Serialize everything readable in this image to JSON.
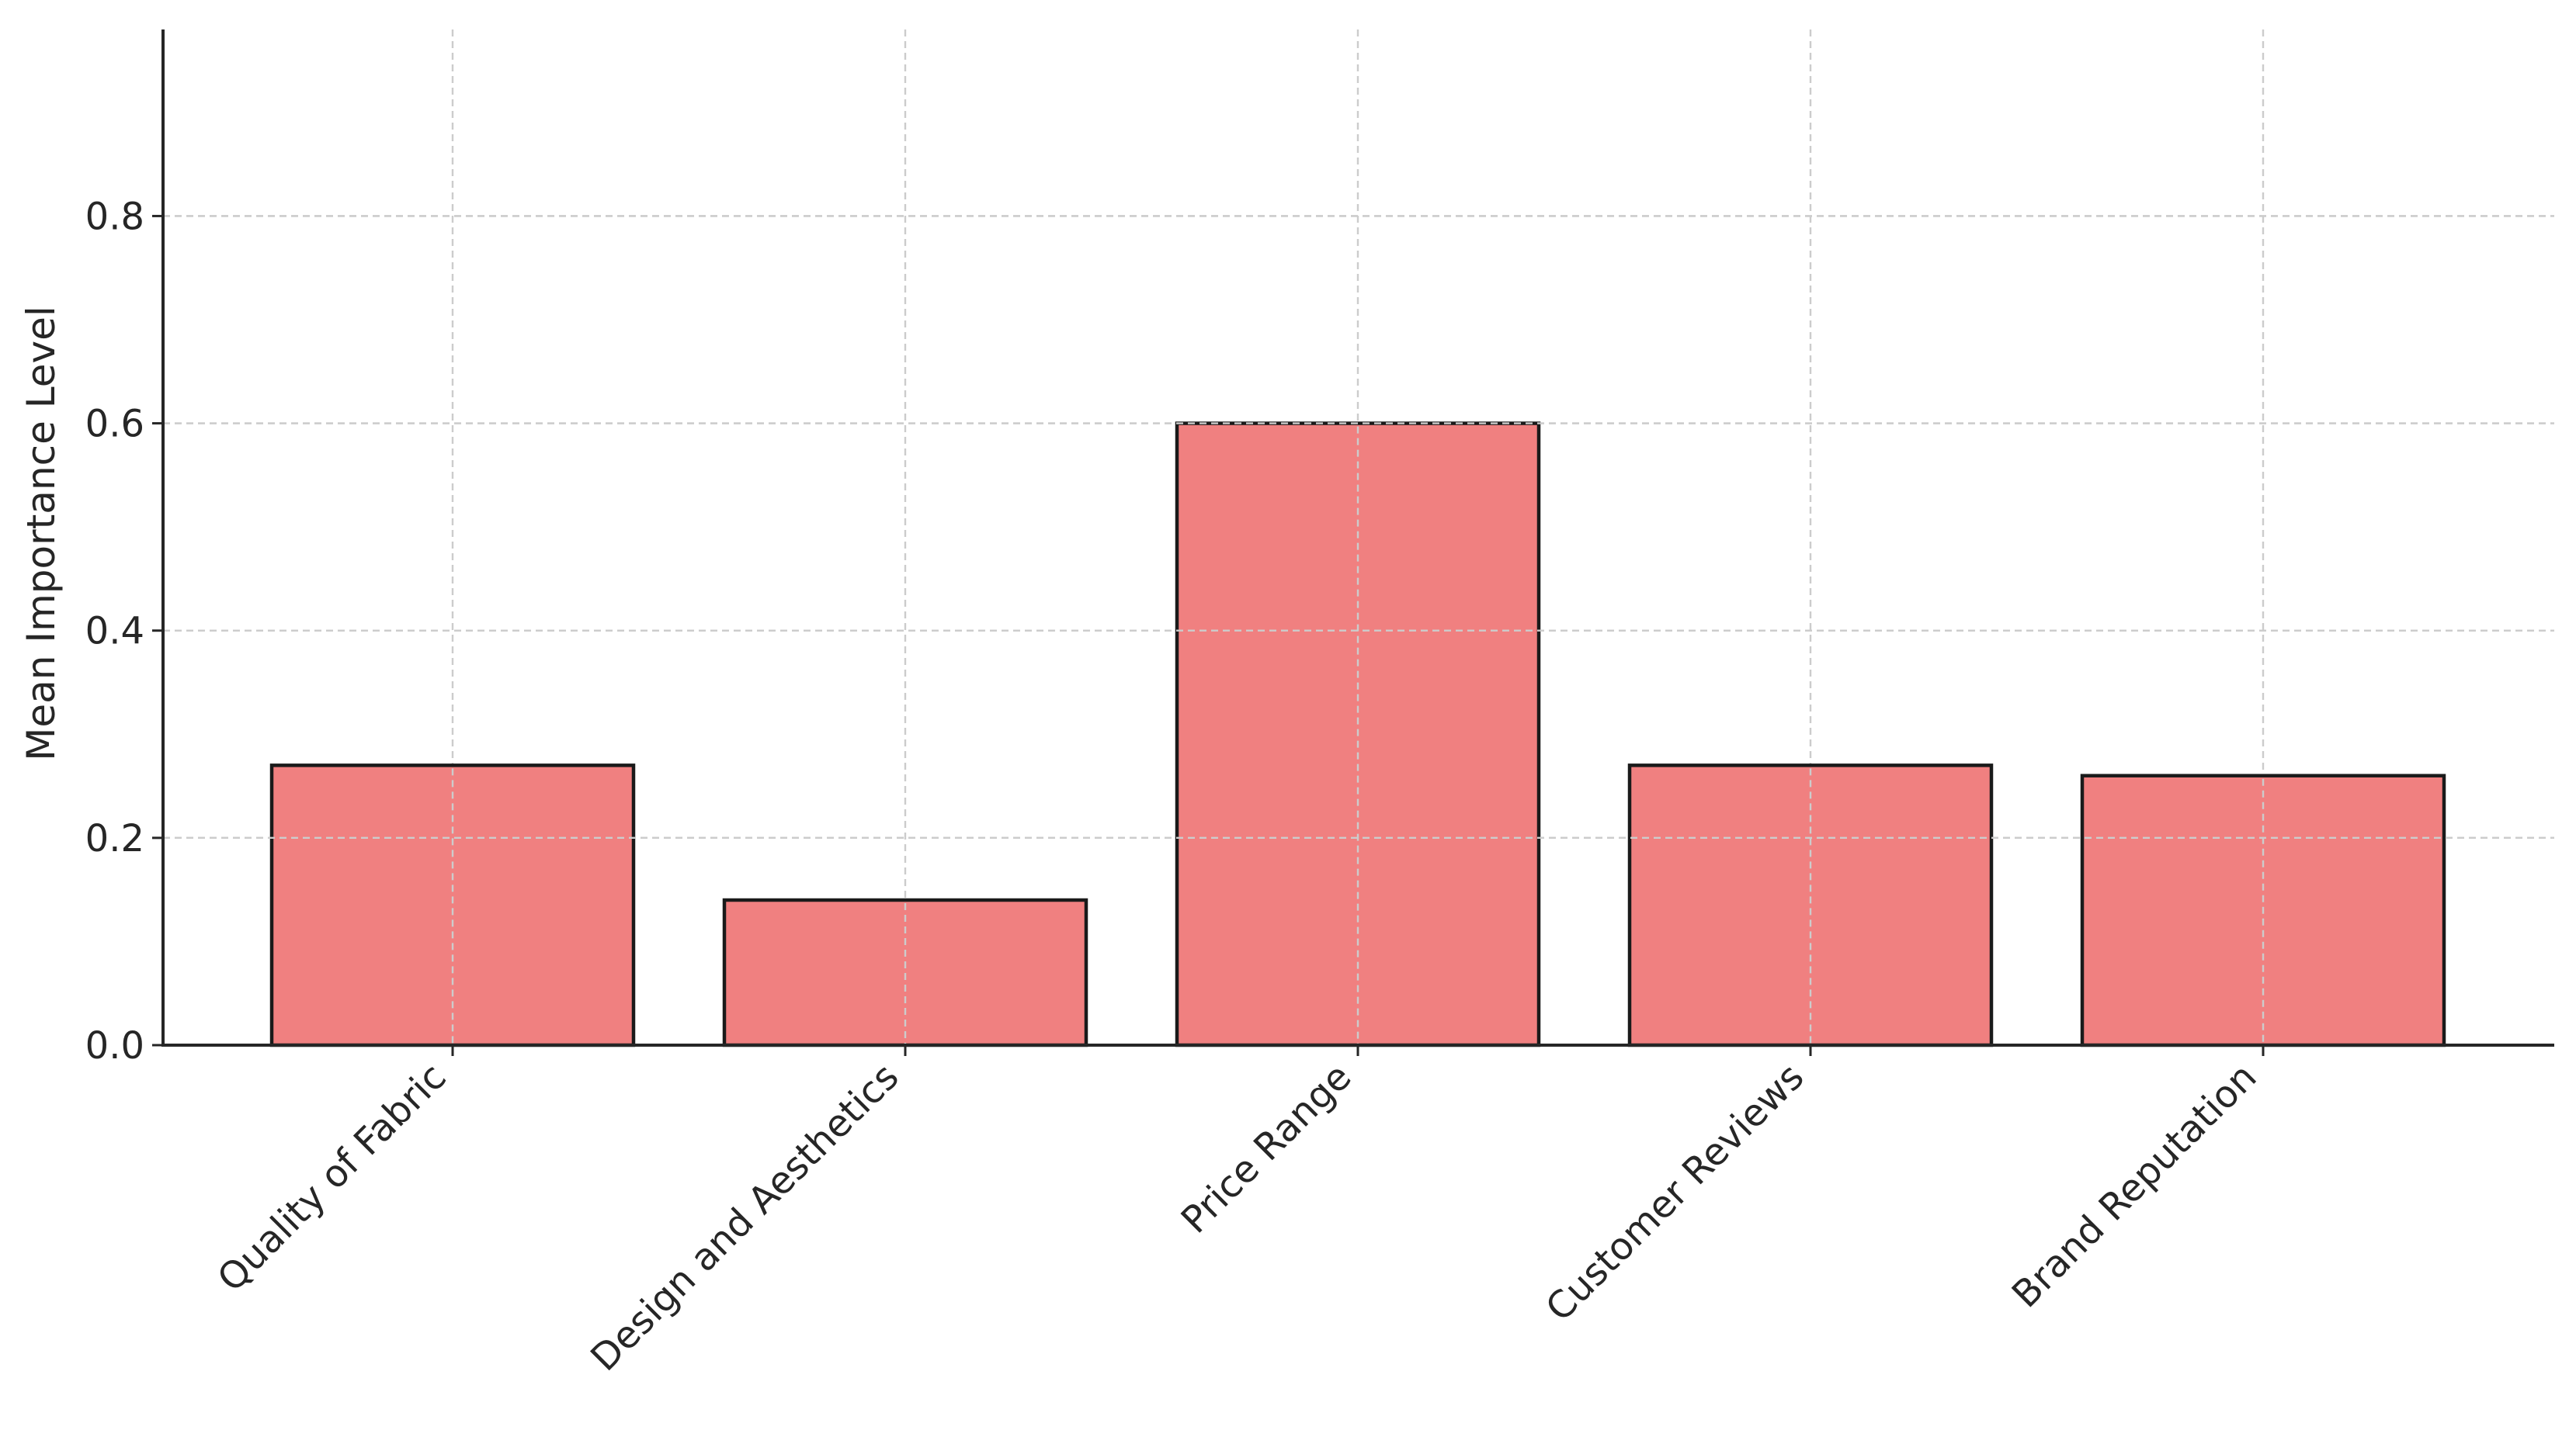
{
  "chart_data": {
    "type": "bar",
    "title": "",
    "xlabel": "",
    "ylabel": "Mean Importance Level",
    "categories": [
      "Quality of Fabric",
      "Design and Aesthetics",
      "Price Range",
      "Customer Reviews",
      "Brand Reputation"
    ],
    "values": [
      0.27,
      0.14,
      0.6,
      0.27,
      0.26
    ],
    "ylim": [
      0,
      0.98
    ],
    "yticks": [
      0.0,
      0.2,
      0.4,
      0.6,
      0.8
    ],
    "ytick_labels": [
      "0.0",
      "0.2",
      "0.4",
      "0.6",
      "0.8"
    ],
    "grid": true,
    "bar_color": "#F08080",
    "edge_color": "#1a1a1a"
  }
}
